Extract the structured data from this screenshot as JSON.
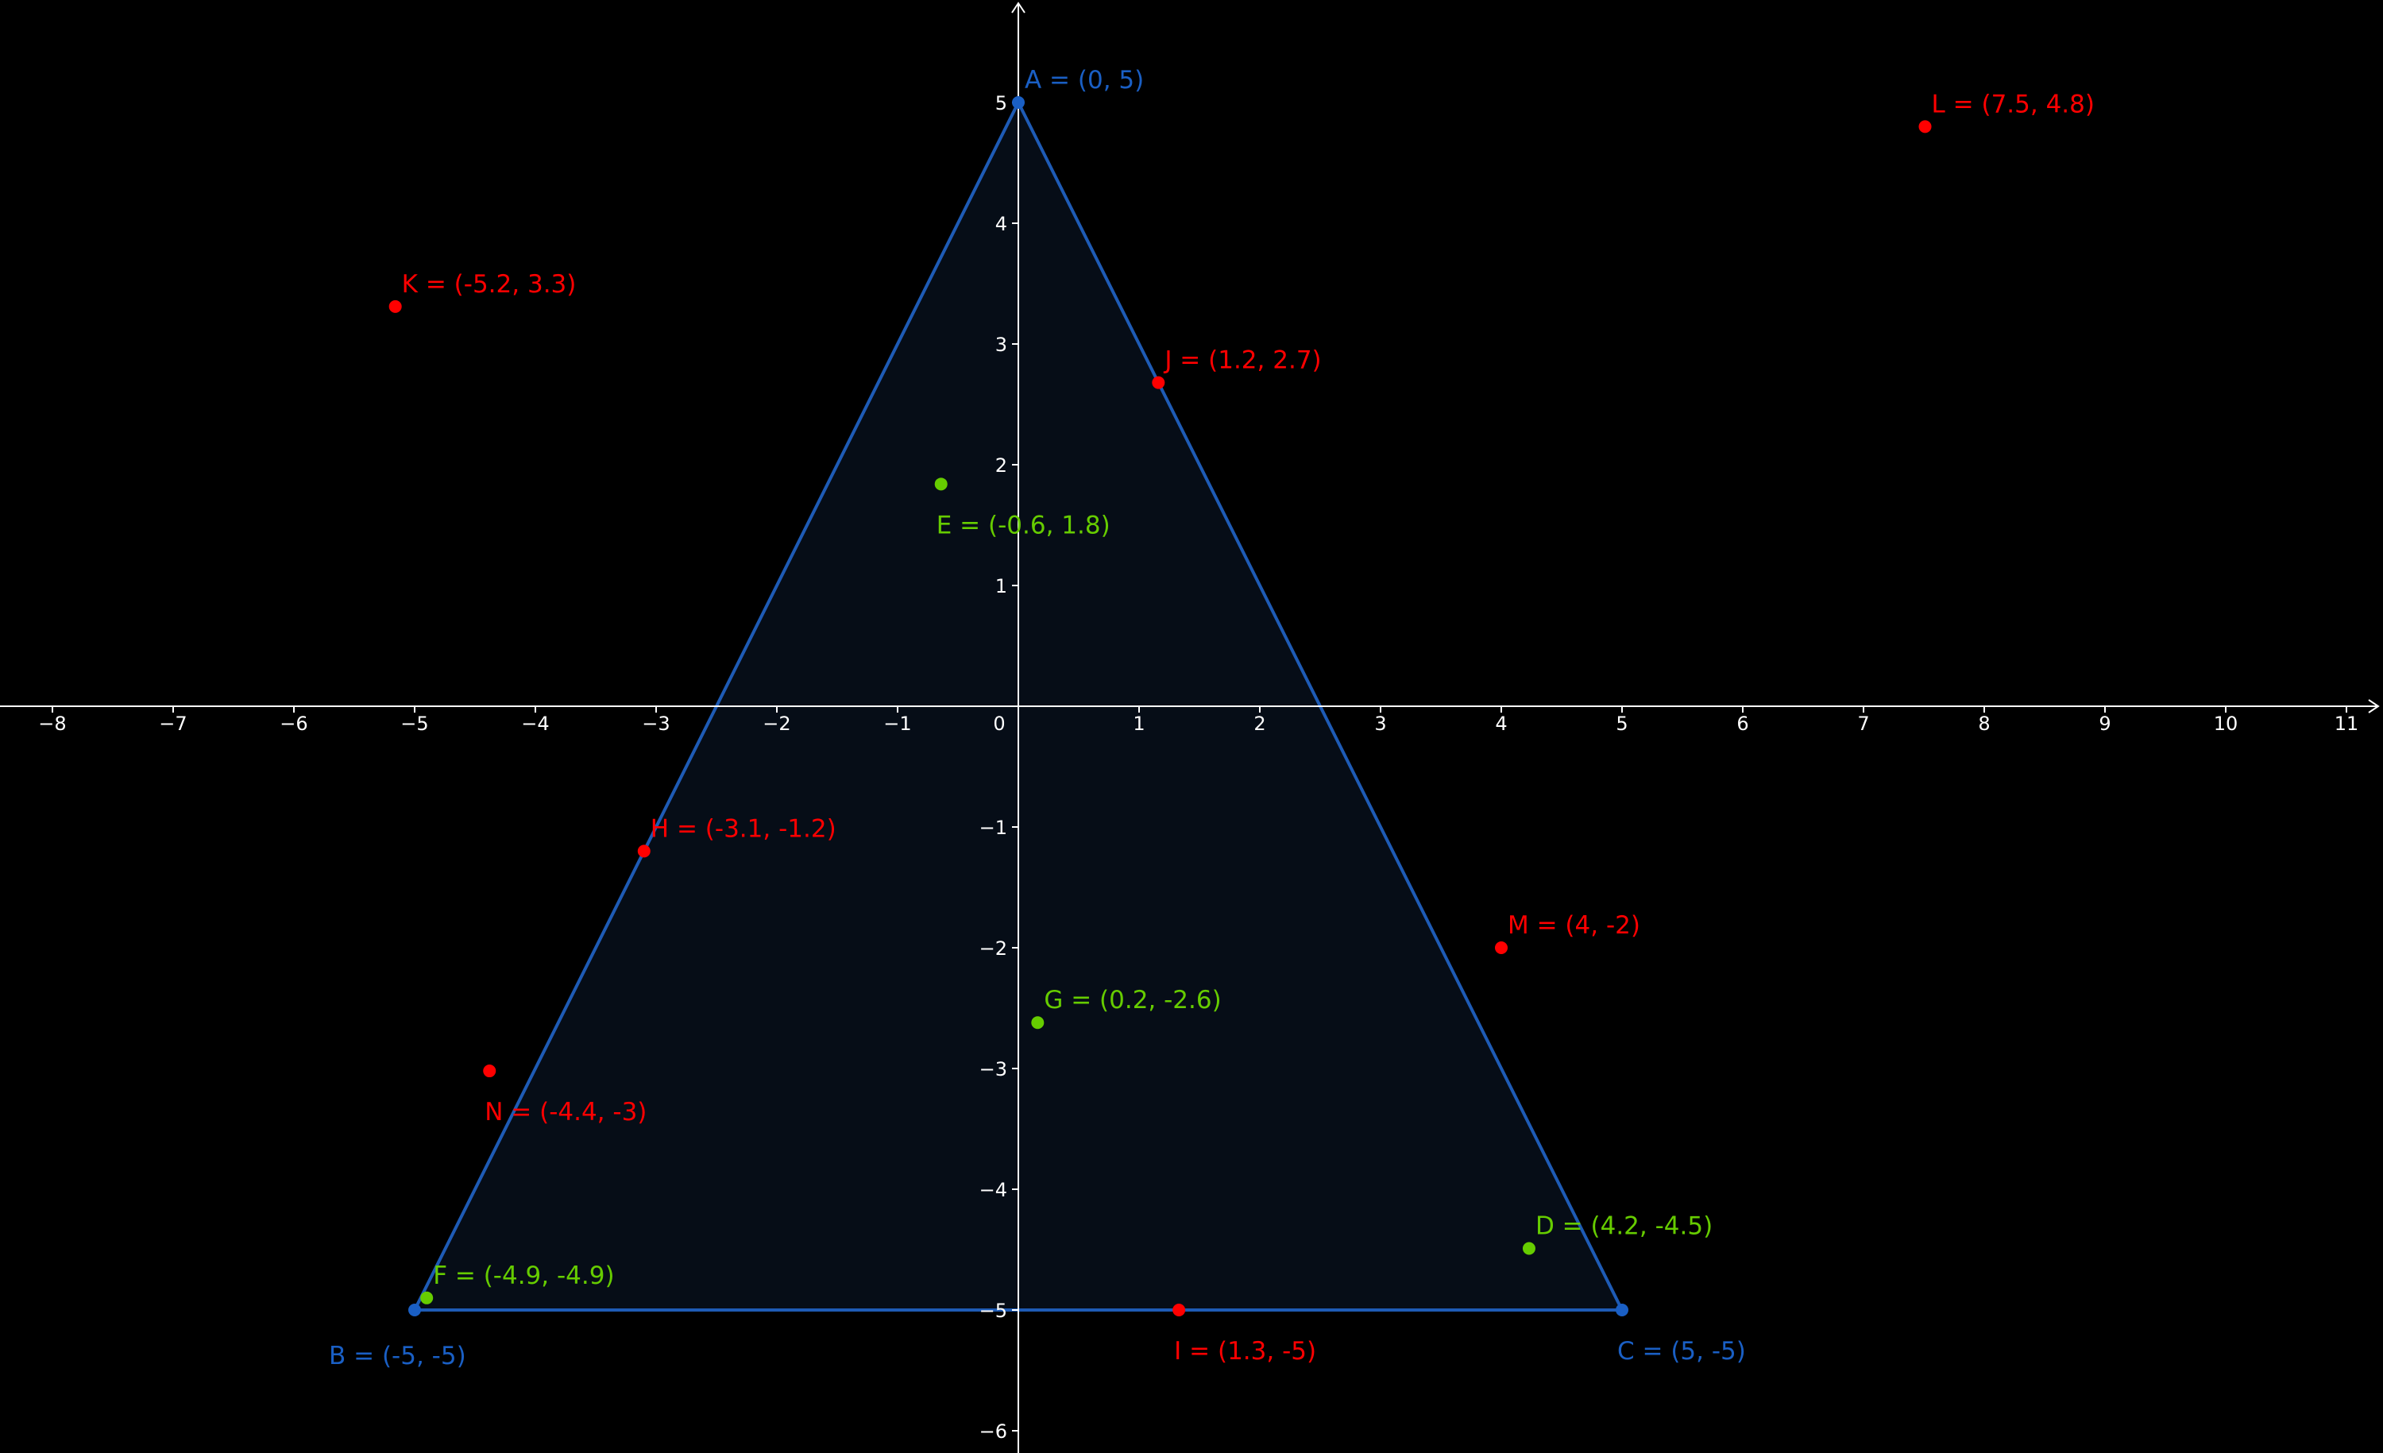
{
  "colors": {
    "background": "#000000",
    "axis": "#ffffff",
    "triangle_stroke": "#1e5bb5",
    "triangle_fill": "#060d17",
    "vertex": "#1a5fc4",
    "inside": "#66cc00",
    "outside": "#ff0000"
  },
  "axes": {
    "x_ticks": [
      -8,
      -7,
      -6,
      -5,
      -4,
      -3,
      -2,
      -1,
      0,
      1,
      2,
      3,
      4,
      5,
      6,
      7,
      8,
      9,
      10,
      11
    ],
    "y_ticks": [
      5,
      4,
      3,
      2,
      1,
      -1,
      -2,
      -3,
      -4,
      -5,
      -6
    ],
    "x_range": [
      -8.45,
      11.3
    ],
    "y_range": [
      -6.2,
      5.85
    ]
  },
  "triangle": {
    "vertices": [
      "A",
      "B",
      "C"
    ]
  },
  "points": [
    {
      "id": "A",
      "label": "A = (0, 5)",
      "x": 0,
      "y": 5,
      "kind": "vertex",
      "label_pos": "above-right"
    },
    {
      "id": "B",
      "label": "B = (-5, -5)",
      "x": -5,
      "y": -5,
      "kind": "vertex",
      "label_pos": "below-left"
    },
    {
      "id": "C",
      "label": "C = (5, -5)",
      "x": 5,
      "y": -5,
      "kind": "vertex",
      "label_pos": "below-right"
    },
    {
      "id": "D",
      "label": "D = (4.2, -4.5)",
      "x": 4.23,
      "y": -4.49,
      "kind": "inside",
      "label_pos": "above-right"
    },
    {
      "id": "E",
      "label": "E = (-0.6, 1.8)",
      "x": -0.64,
      "y": 1.84,
      "kind": "inside",
      "label_pos": "below-right"
    },
    {
      "id": "F",
      "label": "F = (-4.9, -4.9)",
      "x": -4.9,
      "y": -4.9,
      "kind": "inside",
      "label_pos": "above-right"
    },
    {
      "id": "G",
      "label": "G = (0.2, -2.6)",
      "x": 0.16,
      "y": -2.62,
      "kind": "inside",
      "label_pos": "above-right"
    },
    {
      "id": "H",
      "label": "H = (-3.1, -1.2)",
      "x": -3.1,
      "y": -1.2,
      "kind": "outside",
      "label_pos": "above-right"
    },
    {
      "id": "I",
      "label": "I = (1.3, -5)",
      "x": 1.33,
      "y": -5,
      "kind": "outside",
      "label_pos": "below-right"
    },
    {
      "id": "J",
      "label": "J = (1.2, 2.7)",
      "x": 1.16,
      "y": 2.68,
      "kind": "outside",
      "label_pos": "above-right"
    },
    {
      "id": "K",
      "label": "K = (-5.2, 3.3)",
      "x": -5.16,
      "y": 3.31,
      "kind": "outside",
      "label_pos": "above-right"
    },
    {
      "id": "L",
      "label": "L = (7.5, 4.8)",
      "x": 7.51,
      "y": 4.8,
      "kind": "outside",
      "label_pos": "above-right"
    },
    {
      "id": "M",
      "label": "M = (4, -2)",
      "x": 4,
      "y": -2,
      "kind": "outside",
      "label_pos": "above-right"
    },
    {
      "id": "N",
      "label": "N = (-4.4, -3)",
      "x": -4.38,
      "y": -3.02,
      "kind": "outside",
      "label_pos": "below-right"
    }
  ]
}
